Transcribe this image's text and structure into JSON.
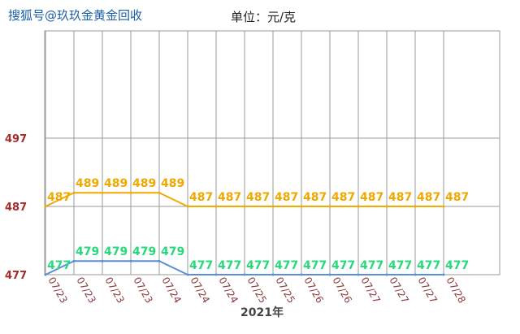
{
  "watermark": "搜狐号@玖玖金黄金回收",
  "chart_data": {
    "type": "line",
    "unit_label": "单位：元/克",
    "xlabel": "2021年",
    "categories": [
      "07/23",
      "07/23",
      "07/23",
      "07/23",
      "07/24",
      "07/24",
      "07/24",
      "07/25",
      "07/25",
      "07/26",
      "07/26",
      "07/27",
      "07/27",
      "07/27",
      "07/28"
    ],
    "yticks": [
      477,
      487,
      497
    ],
    "ylim": [
      477,
      510
    ],
    "grid": true,
    "series": [
      {
        "color": "#f2a900",
        "label_color": "#f0a800",
        "values": [
          487,
          489,
          489,
          489,
          489,
          487,
          487,
          487,
          487,
          487,
          487,
          487,
          487,
          487,
          487
        ]
      },
      {
        "color": "#5a8ed6",
        "label_color": "#27d97a",
        "values": [
          477,
          479,
          479,
          479,
          479,
          477,
          477,
          477,
          477,
          477,
          477,
          477,
          477,
          477,
          477
        ]
      }
    ],
    "ytick_color": "#a52a2a",
    "xtick_color": "#8b3a3a"
  }
}
